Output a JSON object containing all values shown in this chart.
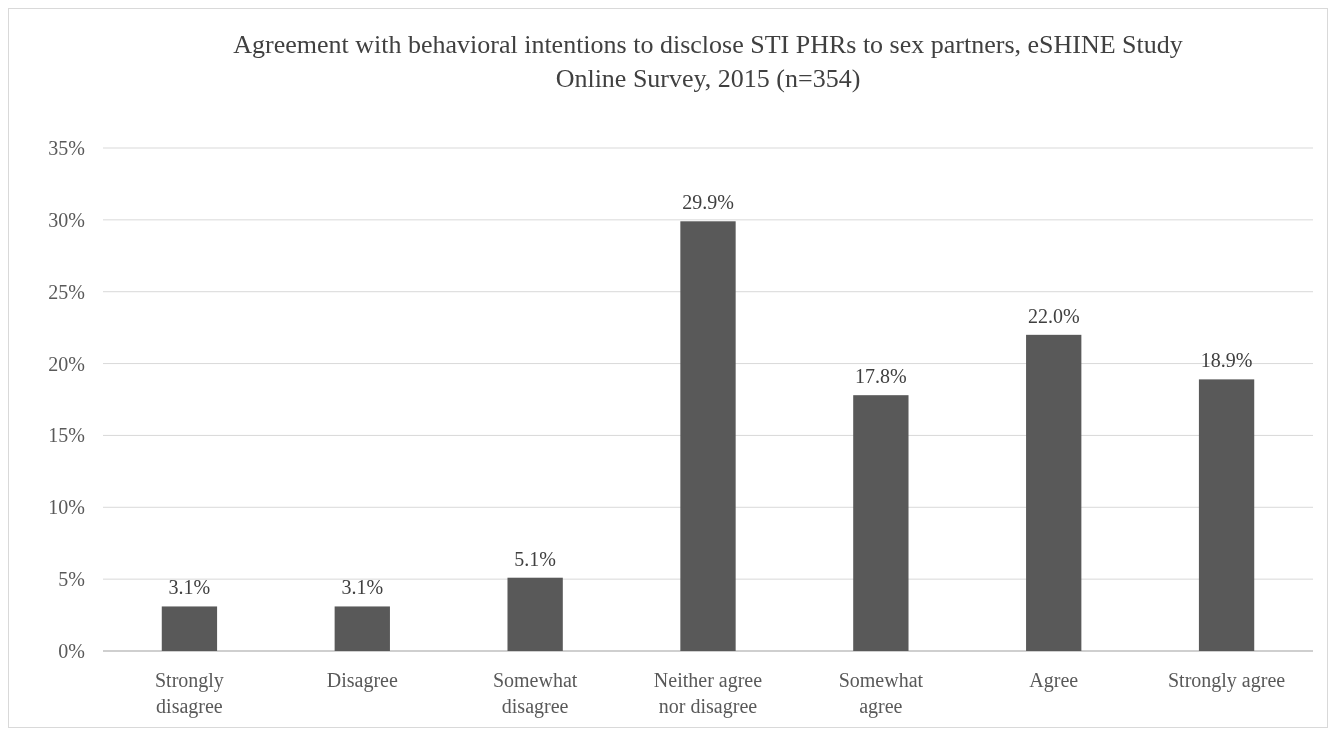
{
  "chart_data": {
    "type": "bar",
    "title": "Agreement with behavioral intentions to disclose STI PHRs to sex partners, eSHINE Study Online Survey, 2015 (n=354)",
    "categories": [
      "Strongly disagree",
      "Disagree",
      "Somewhat disagree",
      "Neither agree nor disagree",
      "Somewhat agree",
      "Agree",
      "Strongly agree"
    ],
    "values": [
      3.1,
      3.1,
      5.1,
      29.9,
      17.8,
      22.0,
      18.9
    ],
    "value_labels": [
      "3.1%",
      "3.1%",
      "5.1%",
      "29.9%",
      "17.8%",
      "22.0%",
      "18.9%"
    ],
    "color": "#595959",
    "ylim": [
      0,
      35
    ],
    "yticks": [
      {
        "value": 0,
        "label": "0%"
      },
      {
        "value": 5,
        "label": "5%"
      },
      {
        "value": 10,
        "label": "10%"
      },
      {
        "value": 15,
        "label": "15%"
      },
      {
        "value": 20,
        "label": "20%"
      },
      {
        "value": 25,
        "label": "25%"
      },
      {
        "value": 30,
        "label": "30%"
      },
      {
        "value": 35,
        "label": "35%"
      }
    ],
    "grid": "y"
  }
}
